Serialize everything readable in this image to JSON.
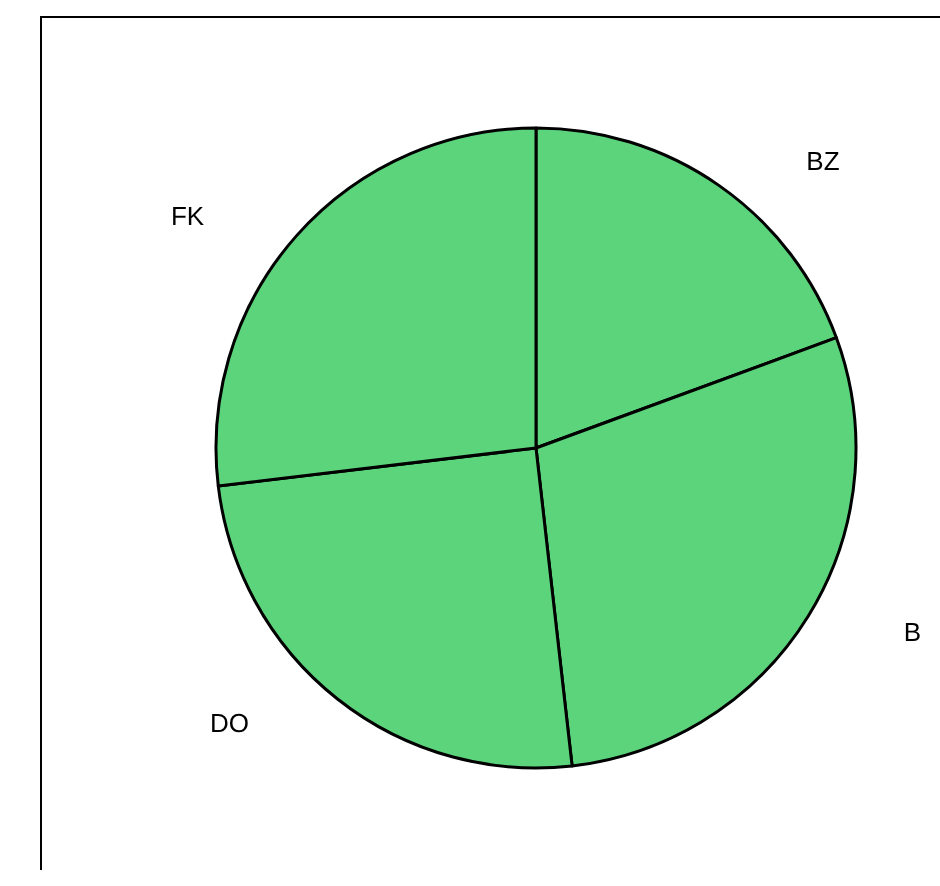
{
  "chart_data": {
    "type": "pie",
    "categories": [
      "BZ",
      "B",
      "DO",
      "FK"
    ],
    "values": [
      19.4,
      28.8,
      24.9,
      26.9
    ],
    "colors": [
      "#5cd47c",
      "#5cd47c",
      "#5cd47c",
      "#5cd47c"
    ],
    "legend": false
  }
}
